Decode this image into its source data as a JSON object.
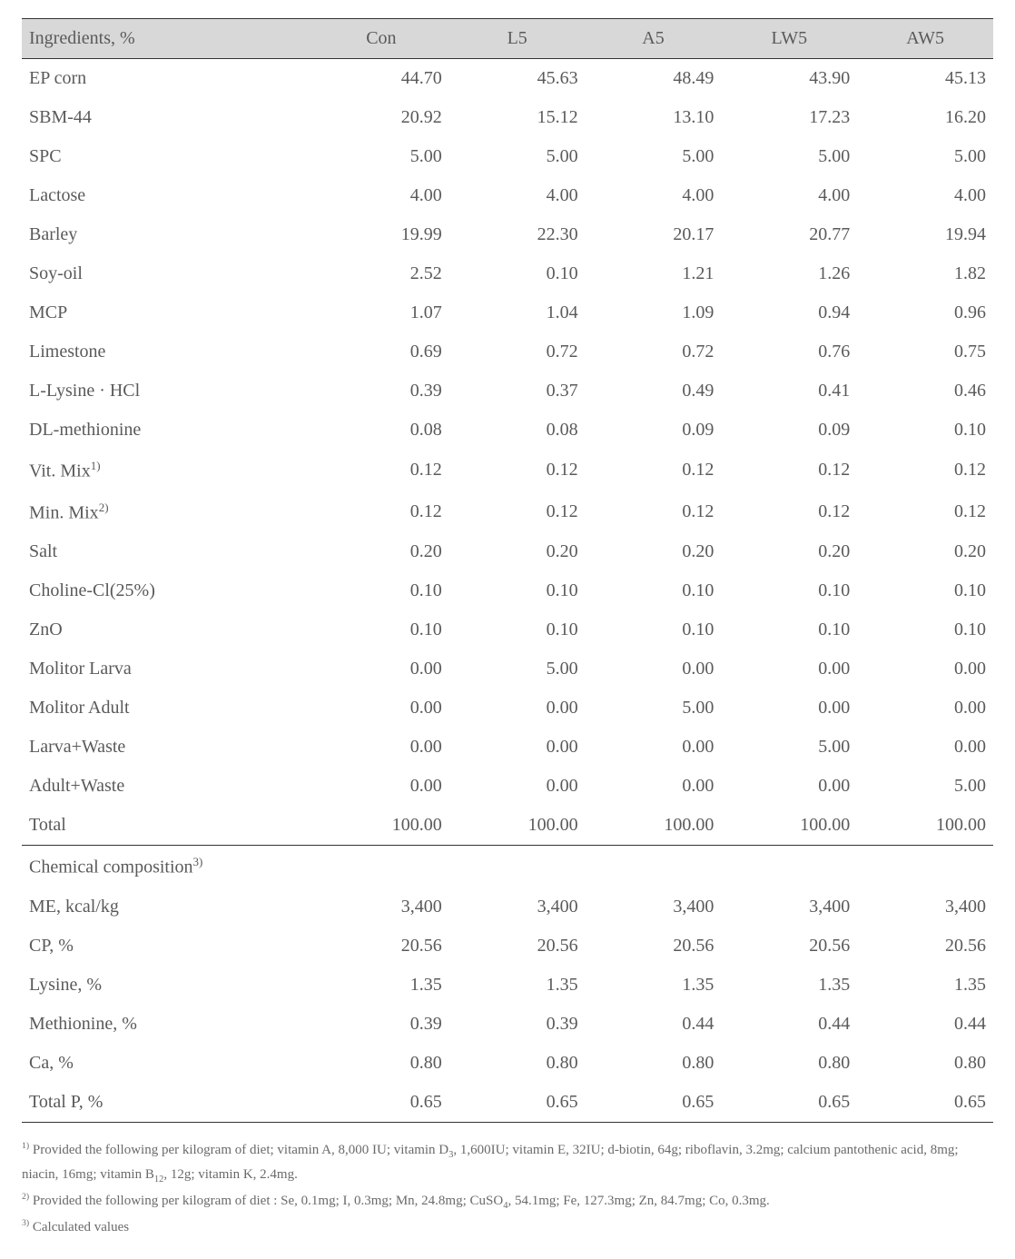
{
  "table": {
    "background_header": "#d8d8d8",
    "border_color": "#333333",
    "text_color": "#5a5a5a",
    "font_size_body": 20,
    "font_size_footnote": 15,
    "columns": [
      {
        "label": "Ingredients, %",
        "align": "left"
      },
      {
        "label": "Con",
        "align": "right"
      },
      {
        "label": "L5",
        "align": "right"
      },
      {
        "label": "A5",
        "align": "right"
      },
      {
        "label": "LW5",
        "align": "right"
      },
      {
        "label": "AW5",
        "align": "right"
      }
    ],
    "ingredient_rows": [
      {
        "label": "EP corn",
        "con": "44.70",
        "l5": "45.63",
        "a5": "48.49",
        "lw5": "43.90",
        "aw5": "45.13"
      },
      {
        "label": "SBM-44",
        "con": "20.92",
        "l5": "15.12",
        "a5": "13.10",
        "lw5": "17.23",
        "aw5": "16.20"
      },
      {
        "label": "SPC",
        "con": "5.00",
        "l5": "5.00",
        "a5": "5.00",
        "lw5": "5.00",
        "aw5": "5.00"
      },
      {
        "label": "Lactose",
        "con": "4.00",
        "l5": "4.00",
        "a5": "4.00",
        "lw5": "4.00",
        "aw5": "4.00"
      },
      {
        "label": "Barley",
        "con": "19.99",
        "l5": "22.30",
        "a5": "20.17",
        "lw5": "20.77",
        "aw5": "19.94"
      },
      {
        "label": "Soy-oil",
        "con": "2.52",
        "l5": "0.10",
        "a5": "1.21",
        "lw5": "1.26",
        "aw5": "1.82"
      },
      {
        "label": "MCP",
        "con": "1.07",
        "l5": "1.04",
        "a5": "1.09",
        "lw5": "0.94",
        "aw5": "0.96"
      },
      {
        "label": "Limestone",
        "con": "0.69",
        "l5": "0.72",
        "a5": "0.72",
        "lw5": "0.76",
        "aw5": "0.75"
      },
      {
        "label": "L-Lysine · HCl",
        "con": "0.39",
        "l5": "0.37",
        "a5": "0.49",
        "lw5": "0.41",
        "aw5": "0.46"
      },
      {
        "label": "DL-methionine",
        "con": "0.08",
        "l5": "0.08",
        "a5": "0.09",
        "lw5": "0.09",
        "aw5": "0.10"
      },
      {
        "label": "Vit. Mix",
        "sup": "1)",
        "con": "0.12",
        "l5": "0.12",
        "a5": "0.12",
        "lw5": "0.12",
        "aw5": "0.12"
      },
      {
        "label": "Min. Mix",
        "sup": "2)",
        "con": "0.12",
        "l5": "0.12",
        "a5": "0.12",
        "lw5": "0.12",
        "aw5": "0.12"
      },
      {
        "label": "Salt",
        "con": "0.20",
        "l5": "0.20",
        "a5": "0.20",
        "lw5": "0.20",
        "aw5": "0.20"
      },
      {
        "label": "Choline-Cl(25%)",
        "con": "0.10",
        "l5": "0.10",
        "a5": "0.10",
        "lw5": "0.10",
        "aw5": "0.10"
      },
      {
        "label": "ZnO",
        "con": "0.10",
        "l5": "0.10",
        "a5": "0.10",
        "lw5": "0.10",
        "aw5": "0.10"
      },
      {
        "label": "Molitor Larva",
        "con": "0.00",
        "l5": "5.00",
        "a5": "0.00",
        "lw5": "0.00",
        "aw5": "0.00"
      },
      {
        "label": "Molitor Adult",
        "con": "0.00",
        "l5": "0.00",
        "a5": "5.00",
        "lw5": "0.00",
        "aw5": "0.00"
      },
      {
        "label": "Larva+Waste",
        "con": "0.00",
        "l5": "0.00",
        "a5": "0.00",
        "lw5": "5.00",
        "aw5": "0.00"
      },
      {
        "label": "Adult+Waste",
        "con": "0.00",
        "l5": "0.00",
        "a5": "0.00",
        "lw5": "0.00",
        "aw5": "5.00"
      },
      {
        "label": "Total",
        "con": "100.00",
        "l5": "100.00",
        "a5": "100.00",
        "lw5": "100.00",
        "aw5": "100.00"
      }
    ],
    "composition_header": {
      "label": "Chemical composition",
      "sup": "3)"
    },
    "composition_rows": [
      {
        "label": "ME, kcal/kg",
        "con": "3,400",
        "l5": "3,400",
        "a5": "3,400",
        "lw5": "3,400",
        "aw5": "3,400"
      },
      {
        "label": "CP, %",
        "con": "20.56",
        "l5": "20.56",
        "a5": "20.56",
        "lw5": "20.56",
        "aw5": "20.56"
      },
      {
        "label": "Lysine, %",
        "con": "1.35",
        "l5": "1.35",
        "a5": "1.35",
        "lw5": "1.35",
        "aw5": "1.35"
      },
      {
        "label": "Methionine, %",
        "con": "0.39",
        "l5": "0.39",
        "a5": "0.44",
        "lw5": "0.44",
        "aw5": "0.44"
      },
      {
        "label": "Ca, %",
        "con": "0.80",
        "l5": "0.80",
        "a5": "0.80",
        "lw5": "0.80",
        "aw5": "0.80"
      },
      {
        "label": "Total P, %",
        "con": "0.65",
        "l5": "0.65",
        "a5": "0.65",
        "lw5": "0.65",
        "aw5": "0.65"
      }
    ]
  },
  "footnotes": {
    "n1_sup": "1)",
    "n1_text": " Provided the following per kilogram of diet; vitamin A, 8,000 IU; vitamin D",
    "n1_sub": "3",
    "n1_text2": ", 1,600IU; vitamin E, 32IU; d-biotin, 64g; riboflavin, 3.2mg; calcium pantothenic acid, 8mg; niacin, 16mg; vitamin B",
    "n1_sub2": "12",
    "n1_text3": ", 12g; vitamin K, 2.4mg.",
    "n2_sup": "2)",
    "n2_text": " Provided the following per kilogram of diet : Se, 0.1mg; I, 0.3mg; Mn, 24.8mg; CuSO",
    "n2_sub": "4",
    "n2_text2": ", 54.1mg; Fe, 127.3mg; Zn, 84.7mg; Co, 0.3mg.",
    "n3_sup": "3)",
    "n3_text": " Calculated values"
  }
}
